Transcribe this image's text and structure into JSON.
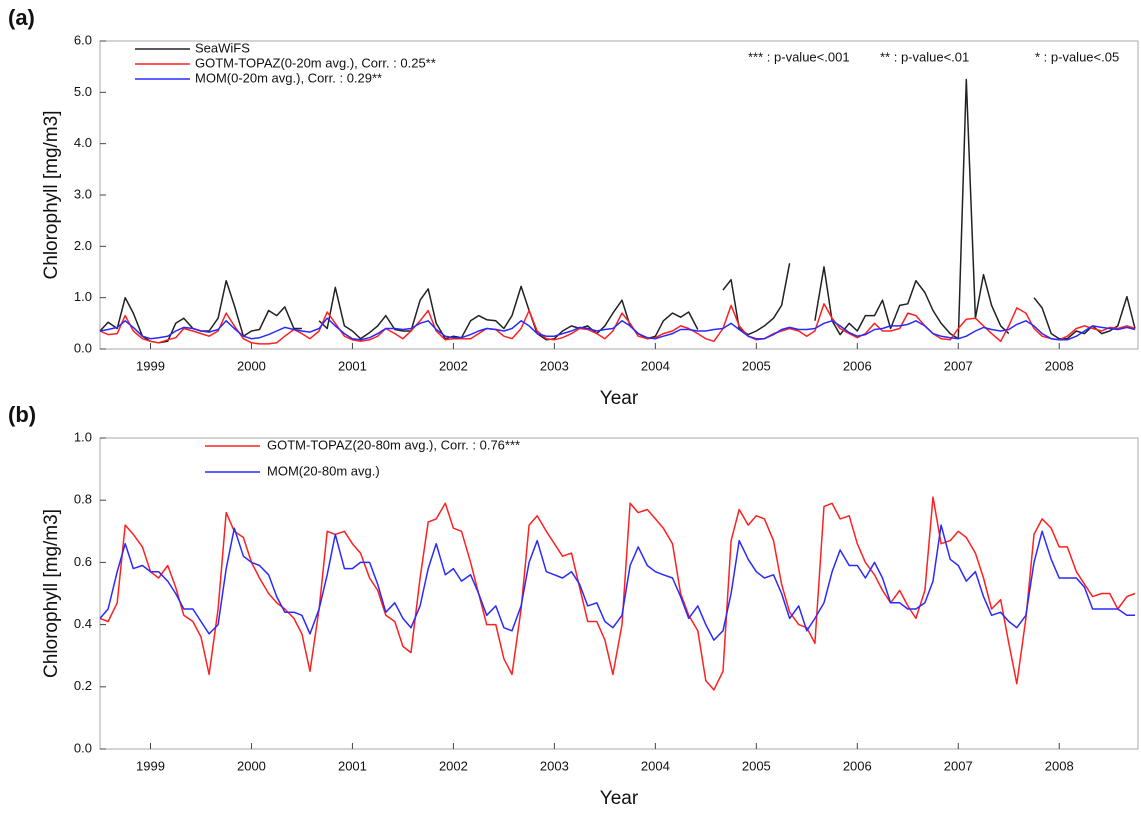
{
  "chart_data": [
    {
      "type": "line",
      "panel_label": "(a)",
      "xlabel": "Year",
      "ylabel": "Chlorophyll [mg/m3]",
      "annotations": [
        "*** : p-value<.001",
        "** : p-value<.01",
        "* : p-value<.05"
      ],
      "legend": "upper left",
      "xlim": [
        1998.5,
        2008.78
      ],
      "xticks": [
        1999,
        2000,
        2001,
        2002,
        2003,
        2004,
        2005,
        2006,
        2007,
        2008
      ],
      "ylim": [
        0,
        6
      ],
      "yticks": [
        {
          "value": 0,
          "label": "0.0"
        },
        {
          "value": 1,
          "label": "1.0"
        },
        {
          "value": 2,
          "label": "2.0"
        },
        {
          "value": 3,
          "label": "3.0"
        },
        {
          "value": 4,
          "label": "4.0"
        },
        {
          "value": 5,
          "label": "5.0"
        },
        {
          "value": 6,
          "label": "6.0"
        }
      ],
      "x": [
        1998.5,
        1998.58,
        1998.67,
        1998.75,
        1998.83,
        1998.92,
        1999,
        1999.08,
        1999.17,
        1999.25,
        1999.33,
        1999.42,
        1999.5,
        1999.58,
        1999.67,
        1999.75,
        1999.83,
        1999.92,
        2000,
        2000.08,
        2000.17,
        2000.25,
        2000.33,
        2000.42,
        2000.5,
        2000.58,
        2000.67,
        2000.75,
        2000.83,
        2000.92,
        2001,
        2001.08,
        2001.17,
        2001.25,
        2001.33,
        2001.42,
        2001.5,
        2001.58,
        2001.67,
        2001.75,
        2001.83,
        2001.92,
        2002,
        2002.08,
        2002.17,
        2002.25,
        2002.33,
        2002.42,
        2002.5,
        2002.58,
        2002.67,
        2002.75,
        2002.83,
        2002.92,
        2003,
        2003.08,
        2003.17,
        2003.25,
        2003.33,
        2003.42,
        2003.5,
        2003.58,
        2003.67,
        2003.75,
        2003.83,
        2003.92,
        2004,
        2004.08,
        2004.17,
        2004.25,
        2004.33,
        2004.42,
        2004.5,
        2004.58,
        2004.67,
        2004.75,
        2004.83,
        2004.92,
        2005,
        2005.08,
        2005.17,
        2005.25,
        2005.33,
        2005.42,
        2005.5,
        2005.58,
        2005.67,
        2005.75,
        2005.83,
        2005.92,
        2006,
        2006.08,
        2006.17,
        2006.25,
        2006.33,
        2006.42,
        2006.5,
        2006.58,
        2006.67,
        2006.75,
        2006.83,
        2006.92,
        2007,
        2007.08,
        2007.17,
        2007.25,
        2007.33,
        2007.42,
        2007.5,
        2007.58,
        2007.67,
        2007.75,
        2007.83,
        2007.92,
        2008,
        2008.08,
        2008.17,
        2008.25,
        2008.33,
        2008.42,
        2008.5,
        2008.58,
        2008.67,
        2008.75
      ],
      "series": [
        {
          "name": "SeaWiFS",
          "color": "#222222",
          "values": [
            0.35,
            0.52,
            0.4,
            1.0,
            0.7,
            0.25,
            0.15,
            0.12,
            0.15,
            0.5,
            0.6,
            0.4,
            0.35,
            0.35,
            0.6,
            1.33,
            0.85,
            0.25,
            0.35,
            0.38,
            0.75,
            0.65,
            0.82,
            0.4,
            0.4,
            null,
            0.55,
            0.4,
            1.2,
            0.45,
            0.35,
            0.2,
            0.32,
            0.45,
            0.65,
            0.38,
            0.35,
            0.35,
            0.95,
            1.17,
            0.5,
            0.2,
            0.25,
            0.22,
            0.55,
            0.65,
            0.57,
            0.55,
            0.4,
            0.65,
            1.22,
            0.75,
            0.3,
            0.18,
            0.2,
            0.35,
            0.45,
            0.4,
            0.45,
            0.3,
            0.45,
            0.7,
            0.95,
            0.45,
            0.3,
            0.2,
            0.25,
            0.55,
            0.7,
            0.62,
            0.72,
            0.38,
            null,
            null,
            1.15,
            1.35,
            0.4,
            0.28,
            0.35,
            0.45,
            0.6,
            0.85,
            1.67,
            null,
            null,
            0.55,
            1.6,
            0.55,
            0.28,
            0.5,
            0.35,
            0.65,
            0.65,
            0.95,
            0.4,
            0.85,
            0.88,
            1.33,
            1.1,
            0.75,
            0.5,
            0.3,
            0.2,
            5.25,
            0.6,
            1.45,
            0.85,
            0.45,
            0.3,
            null,
            null,
            1.0,
            0.8,
            0.3,
            0.2,
            0.2,
            0.35,
            0.3,
            0.45,
            0.3,
            0.35,
            0.45,
            1.02,
            0.4
          ]
        },
        {
          "name": "GOTM-TOPAZ(0-20m avg.), Corr. : 0.25**",
          "color": "#ff2020",
          "values": [
            0.35,
            0.28,
            0.3,
            0.65,
            0.35,
            0.2,
            0.15,
            0.12,
            0.18,
            0.22,
            0.4,
            0.35,
            0.3,
            0.25,
            0.35,
            0.7,
            0.45,
            0.2,
            0.12,
            0.1,
            0.1,
            0.12,
            0.25,
            0.38,
            0.3,
            0.2,
            0.35,
            0.72,
            0.5,
            0.25,
            0.18,
            0.15,
            0.18,
            0.25,
            0.4,
            0.3,
            0.2,
            0.35,
            0.55,
            0.75,
            0.35,
            0.18,
            0.2,
            0.2,
            0.2,
            0.3,
            0.4,
            0.38,
            0.25,
            0.2,
            0.4,
            0.75,
            0.35,
            0.2,
            0.18,
            0.22,
            0.3,
            0.4,
            0.38,
            0.3,
            0.2,
            0.35,
            0.7,
            0.5,
            0.25,
            0.2,
            0.22,
            0.3,
            0.35,
            0.45,
            0.4,
            0.3,
            0.2,
            0.15,
            0.4,
            0.85,
            0.45,
            0.25,
            0.18,
            0.2,
            0.3,
            0.35,
            0.4,
            0.35,
            0.25,
            0.35,
            0.88,
            0.6,
            0.4,
            0.3,
            0.22,
            0.3,
            0.5,
            0.35,
            0.35,
            0.4,
            0.7,
            0.65,
            0.45,
            0.3,
            0.2,
            0.18,
            0.4,
            0.58,
            0.6,
            0.45,
            0.3,
            0.15,
            0.45,
            0.8,
            0.7,
            0.4,
            0.25,
            0.2,
            0.18,
            0.25,
            0.4,
            0.45,
            0.4,
            0.35,
            0.42,
            0.4,
            0.45,
            0.4
          ]
        },
        {
          "name": "MOM(0-20m avg.), Corr. : 0.29**",
          "color": "#2a2aff",
          "values": [
            0.35,
            0.38,
            0.42,
            0.55,
            0.42,
            0.25,
            0.2,
            0.22,
            0.25,
            0.35,
            0.42,
            0.4,
            0.35,
            0.33,
            0.38,
            0.55,
            0.4,
            0.25,
            0.2,
            0.22,
            0.28,
            0.35,
            0.42,
            0.38,
            0.35,
            0.33,
            0.4,
            0.6,
            0.45,
            0.3,
            0.2,
            0.18,
            0.22,
            0.3,
            0.4,
            0.4,
            0.38,
            0.4,
            0.5,
            0.55,
            0.38,
            0.25,
            0.22,
            0.22,
            0.28,
            0.35,
            0.4,
            0.38,
            0.35,
            0.4,
            0.55,
            0.45,
            0.3,
            0.25,
            0.25,
            0.3,
            0.35,
            0.42,
            0.4,
            0.35,
            0.38,
            0.4,
            0.55,
            0.45,
            0.3,
            0.22,
            0.2,
            0.25,
            0.3,
            0.38,
            0.38,
            0.35,
            0.35,
            0.38,
            0.4,
            0.5,
            0.38,
            0.25,
            0.2,
            0.2,
            0.28,
            0.38,
            0.42,
            0.38,
            0.38,
            0.4,
            0.5,
            0.55,
            0.45,
            0.32,
            0.25,
            0.28,
            0.38,
            0.4,
            0.45,
            0.45,
            0.48,
            0.55,
            0.45,
            0.3,
            0.25,
            0.22,
            0.2,
            0.25,
            0.35,
            0.42,
            0.38,
            0.35,
            0.38,
            0.48,
            0.55,
            0.45,
            0.3,
            0.2,
            0.18,
            0.18,
            0.25,
            0.35,
            0.45,
            0.42,
            0.4,
            0.38,
            0.42,
            0.38
          ]
        }
      ]
    },
    {
      "type": "line",
      "panel_label": "(b)",
      "xlabel": "Year",
      "ylabel": "Chlorophyll [mg/m3]",
      "legend": "upper left",
      "xlim": [
        1998.5,
        2008.78
      ],
      "xticks": [
        1999,
        2000,
        2001,
        2002,
        2003,
        2004,
        2005,
        2006,
        2007,
        2008
      ],
      "ylim": [
        0,
        1
      ],
      "yticks": [
        {
          "value": 0,
          "label": "0.0"
        },
        0.2,
        0.4,
        0.6,
        0.8,
        {
          "value": 1,
          "label": "1.0"
        }
      ],
      "x": [
        1998.5,
        1998.58,
        1998.67,
        1998.75,
        1998.83,
        1998.92,
        1999,
        1999.08,
        1999.17,
        1999.25,
        1999.33,
        1999.42,
        1999.5,
        1999.58,
        1999.67,
        1999.75,
        1999.83,
        1999.92,
        2000,
        2000.08,
        2000.17,
        2000.25,
        2000.33,
        2000.42,
        2000.5,
        2000.58,
        2000.67,
        2000.75,
        2000.83,
        2000.92,
        2001,
        2001.08,
        2001.17,
        2001.25,
        2001.33,
        2001.42,
        2001.5,
        2001.58,
        2001.67,
        2001.75,
        2001.83,
        2001.92,
        2002,
        2002.08,
        2002.17,
        2002.25,
        2002.33,
        2002.42,
        2002.5,
        2002.58,
        2002.67,
        2002.75,
        2002.83,
        2002.92,
        2003,
        2003.08,
        2003.17,
        2003.25,
        2003.33,
        2003.42,
        2003.5,
        2003.58,
        2003.67,
        2003.75,
        2003.83,
        2003.92,
        2004,
        2004.08,
        2004.17,
        2004.25,
        2004.33,
        2004.42,
        2004.5,
        2004.58,
        2004.67,
        2004.75,
        2004.83,
        2004.92,
        2005,
        2005.08,
        2005.17,
        2005.25,
        2005.33,
        2005.42,
        2005.5,
        2005.58,
        2005.67,
        2005.75,
        2005.83,
        2005.92,
        2006,
        2006.08,
        2006.17,
        2006.25,
        2006.33,
        2006.42,
        2006.5,
        2006.58,
        2006.67,
        2006.75,
        2006.83,
        2006.92,
        2007,
        2007.08,
        2007.17,
        2007.25,
        2007.33,
        2007.42,
        2007.5,
        2007.58,
        2007.67,
        2007.75,
        2007.83,
        2007.92,
        2008,
        2008.08,
        2008.17,
        2008.25,
        2008.33,
        2008.42,
        2008.5,
        2008.58,
        2008.67,
        2008.75
      ],
      "series": [
        {
          "name": "GOTM-TOPAZ(20-80m avg.), Corr. : 0.76***",
          "color": "#ff2020",
          "values": [
            0.42,
            0.41,
            0.47,
            0.72,
            0.69,
            0.65,
            0.57,
            0.55,
            0.59,
            0.52,
            0.43,
            0.41,
            0.36,
            0.24,
            0.45,
            0.76,
            0.7,
            0.68,
            0.6,
            0.55,
            0.5,
            0.47,
            0.45,
            0.42,
            0.37,
            0.25,
            0.45,
            0.7,
            0.69,
            0.7,
            0.66,
            0.63,
            0.55,
            0.51,
            0.43,
            0.41,
            0.33,
            0.31,
            0.55,
            0.73,
            0.74,
            0.79,
            0.71,
            0.7,
            0.6,
            0.5,
            0.4,
            0.4,
            0.29,
            0.24,
            0.45,
            0.72,
            0.75,
            0.7,
            0.66,
            0.62,
            0.63,
            0.52,
            0.41,
            0.41,
            0.35,
            0.24,
            0.4,
            0.79,
            0.76,
            0.77,
            0.74,
            0.71,
            0.66,
            0.5,
            0.43,
            0.38,
            0.22,
            0.19,
            0.25,
            0.67,
            0.77,
            0.72,
            0.75,
            0.74,
            0.67,
            0.53,
            0.44,
            0.4,
            0.39,
            0.34,
            0.78,
            0.79,
            0.74,
            0.75,
            0.66,
            0.6,
            0.56,
            0.51,
            0.47,
            0.51,
            0.46,
            0.42,
            0.51,
            0.81,
            0.66,
            0.67,
            0.7,
            0.68,
            0.63,
            0.55,
            0.45,
            0.48,
            0.34,
            0.21,
            0.42,
            0.69,
            0.74,
            0.71,
            0.65,
            0.65,
            0.57,
            0.53,
            0.49,
            0.5,
            0.5,
            0.45,
            0.49,
            0.5
          ]
        },
        {
          "name": "MOM(20-80m avg.)",
          "color": "#2a2aff",
          "values": [
            0.42,
            0.45,
            0.57,
            0.66,
            0.58,
            0.59,
            0.57,
            0.57,
            0.54,
            0.5,
            0.45,
            0.45,
            0.41,
            0.37,
            0.4,
            0.58,
            0.71,
            0.62,
            0.6,
            0.59,
            0.56,
            0.49,
            0.44,
            0.44,
            0.43,
            0.37,
            0.45,
            0.56,
            0.69,
            0.58,
            0.58,
            0.6,
            0.6,
            0.53,
            0.44,
            0.47,
            0.42,
            0.39,
            0.46,
            0.58,
            0.66,
            0.56,
            0.58,
            0.54,
            0.56,
            0.5,
            0.43,
            0.46,
            0.39,
            0.38,
            0.46,
            0.6,
            0.67,
            0.57,
            0.56,
            0.55,
            0.57,
            0.53,
            0.46,
            0.47,
            0.41,
            0.39,
            0.43,
            0.59,
            0.65,
            0.59,
            0.57,
            0.56,
            0.55,
            0.49,
            0.42,
            0.46,
            0.4,
            0.35,
            0.38,
            0.5,
            0.67,
            0.61,
            0.57,
            0.55,
            0.56,
            0.5,
            0.42,
            0.46,
            0.38,
            0.42,
            0.47,
            0.57,
            0.64,
            0.59,
            0.59,
            0.55,
            0.6,
            0.55,
            0.47,
            0.47,
            0.45,
            0.45,
            0.47,
            0.54,
            0.72,
            0.61,
            0.59,
            0.54,
            0.57,
            0.49,
            0.43,
            0.44,
            0.41,
            0.39,
            0.43,
            0.6,
            0.7,
            0.61,
            0.55,
            0.55,
            0.55,
            0.52,
            0.45,
            0.45,
            0.45,
            0.45,
            0.43,
            0.43
          ]
        }
      ]
    }
  ]
}
